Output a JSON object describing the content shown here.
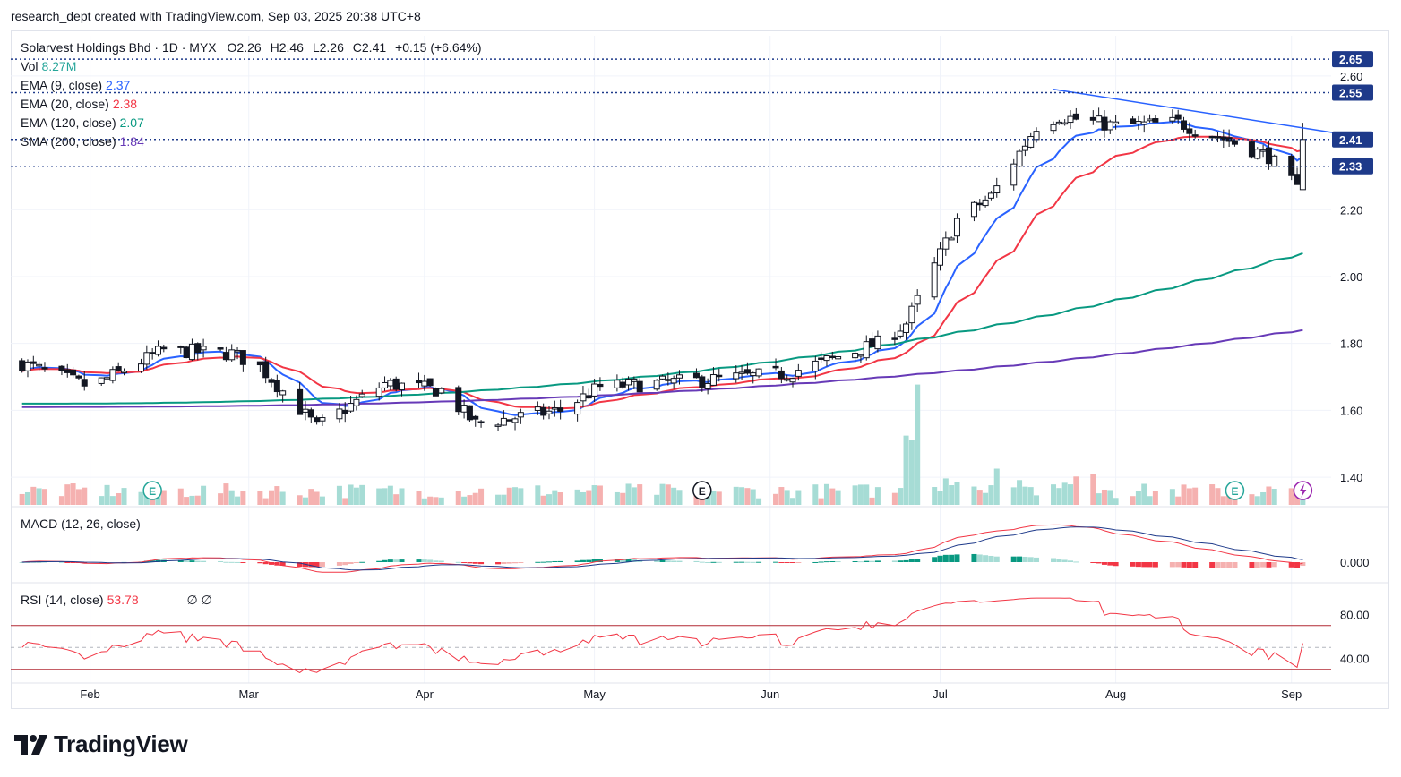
{
  "attribution": "research_dept created with TradingView.com, Sep 03, 2025 20:38 UTC+8",
  "header": {
    "title": "Solarvest Holdings Bhd · 1D · MYX",
    "open_label": "O",
    "open": "2.26",
    "high_label": "H",
    "high": "2.46",
    "low_label": "L",
    "low": "2.26",
    "close_label": "C",
    "close": "2.41",
    "change": "+0.15 (+6.64%)"
  },
  "legend": {
    "vol": {
      "label": "Vol",
      "value": "8.27M",
      "color": "#26a69a"
    },
    "ema9": {
      "label": "EMA (9, close)",
      "value": "2.37",
      "color": "#2962ff"
    },
    "ema20": {
      "label": "EMA (20, close)",
      "value": "2.38",
      "color": "#f23645"
    },
    "ema120": {
      "label": "EMA (120, close)",
      "value": "2.07",
      "color": "#089981"
    },
    "sma200": {
      "label": "SMA (200, close)",
      "value": "1.84",
      "color": "#673ab7"
    }
  },
  "macd_legend": {
    "label": "MACD (12, 26, close)"
  },
  "rsi_legend": {
    "label": "RSI (14, close)",
    "value": "53.78",
    "extra": "∅ ∅",
    "color": "#f23645"
  },
  "brand": "TradingView",
  "icons": {
    "earnings_marker": "E",
    "dividend_marker": "lightning-icon"
  },
  "chart_data": [
    {
      "type": "candlestick",
      "title": "Solarvest Holdings Bhd · 1D · MYX",
      "x_ticks": [
        "Feb",
        "Mar",
        "Apr",
        "May",
        "Jun",
        "Jul",
        "Aug",
        "Sep"
      ],
      "y_ticks": [
        2.6,
        2.2,
        2.0,
        1.8,
        1.6,
        1.4
      ],
      "ylim": [
        1.32,
        2.72
      ],
      "horizontal_levels": [
        {
          "value": 2.65,
          "label": "2.65"
        },
        {
          "value": 2.55,
          "label": "2.55"
        },
        {
          "value": 2.41,
          "label": "2.41"
        },
        {
          "value": 2.33,
          "label": "2.33"
        }
      ],
      "trendline": {
        "from": {
          "date": "Jul 21",
          "value": 2.56
        },
        "to": {
          "date": "Sep 03",
          "value": 2.42
        }
      },
      "anchors": [
        {
          "date": "Jan 20",
          "price": 1.74
        },
        {
          "date": "Feb 01",
          "price": 1.67
        },
        {
          "date": "Feb 14",
          "price": 1.78
        },
        {
          "date": "Feb 26",
          "price": 1.77
        },
        {
          "date": "Mar 03",
          "price": 1.73
        },
        {
          "date": "Mar 13",
          "price": 1.55
        },
        {
          "date": "Mar 25",
          "price": 1.68
        },
        {
          "date": "Apr 04",
          "price": 1.66
        },
        {
          "date": "Apr 10",
          "price": 1.56
        },
        {
          "date": "Apr 25",
          "price": 1.6
        },
        {
          "date": "May 02",
          "price": 1.67
        },
        {
          "date": "May 20",
          "price": 1.69
        },
        {
          "date": "Jun 04",
          "price": 1.71
        },
        {
          "date": "Jun 20",
          "price": 1.8
        },
        {
          "date": "Jun 25",
          "price": 1.86
        },
        {
          "date": "Jul 04",
          "price": 2.17
        },
        {
          "date": "Jul 10",
          "price": 2.24
        },
        {
          "date": "Jul 18",
          "price": 2.45
        },
        {
          "date": "Jul 22",
          "price": 2.48
        },
        {
          "date": "Aug 01",
          "price": 2.45
        },
        {
          "date": "Aug 12",
          "price": 2.46
        },
        {
          "date": "Aug 22",
          "price": 2.4
        },
        {
          "date": "Aug 28",
          "price": 2.36
        },
        {
          "date": "Sep 02",
          "price": 2.26
        },
        {
          "date": "Sep 03",
          "price": 2.41
        }
      ],
      "ema9_end": 2.37,
      "ema20_end": 2.38,
      "ema120_end": 2.07,
      "sma200_end": 1.84,
      "ema120_start": 1.62,
      "sma200_start": 1.61,
      "volume_spike": {
        "date": "Jun 27",
        "note": "largest volume bar"
      }
    },
    {
      "type": "line",
      "title": "MACD (12, 26, close)",
      "y_ticks": [
        0.0
      ],
      "series": [
        {
          "name": "MACD"
        },
        {
          "name": "Signal"
        },
        {
          "name": "Histogram"
        }
      ]
    },
    {
      "type": "line",
      "title": "RSI (14, close)",
      "y_ticks": [
        80.0,
        40.0
      ],
      "bands": [
        70,
        50,
        30
      ],
      "last": 53.78
    }
  ],
  "colors": {
    "up": "#26a69a",
    "down": "#ef5350",
    "grid": "#f0f3fa",
    "level": "#1e3a8a",
    "trend": "#2962ff"
  }
}
